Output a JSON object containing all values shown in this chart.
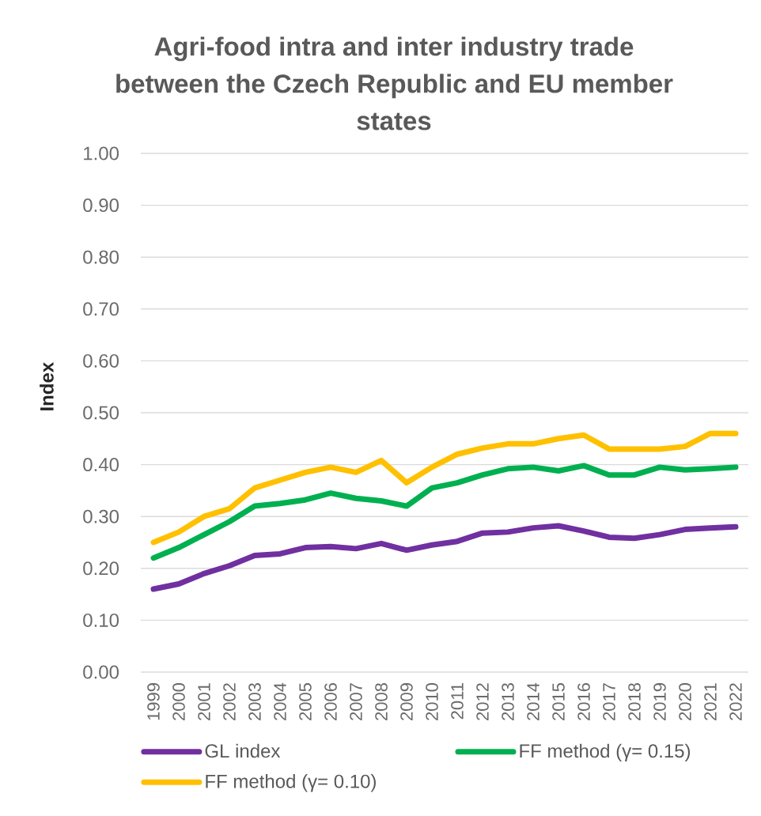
{
  "chart_data": {
    "type": "line",
    "title": "Agri-food intra and inter industry trade between the Czech Republic and EU member states",
    "ylabel": "Index",
    "categories": [
      "1999",
      "2000",
      "2001",
      "2002",
      "2003",
      "2004",
      "2005",
      "2006",
      "2007",
      "2008",
      "2009",
      "2010",
      "2011",
      "2012",
      "2013",
      "2014",
      "2015",
      "2016",
      "2017",
      "2018",
      "2019",
      "2020",
      "2021",
      "2022"
    ],
    "series": [
      {
        "name": "GL index",
        "color": "#7030a0",
        "values": [
          0.16,
          0.17,
          0.19,
          0.205,
          0.225,
          0.228,
          0.24,
          0.242,
          0.238,
          0.248,
          0.235,
          0.245,
          0.252,
          0.268,
          0.27,
          0.278,
          0.282,
          0.272,
          0.26,
          0.258,
          0.265,
          0.275,
          0.278,
          0.28
        ]
      },
      {
        "name": "FF method (γ= 0.15)",
        "color": "#00b050",
        "values": [
          0.22,
          0.24,
          0.265,
          0.29,
          0.32,
          0.325,
          0.332,
          0.345,
          0.335,
          0.33,
          0.32,
          0.355,
          0.365,
          0.38,
          0.392,
          0.395,
          0.388,
          0.398,
          0.38,
          0.38,
          0.395,
          0.39,
          0.392,
          0.395
        ]
      },
      {
        "name": "FF method (γ= 0.10)",
        "color": "#ffc000",
        "values": [
          0.25,
          0.27,
          0.3,
          0.315,
          0.355,
          0.37,
          0.385,
          0.395,
          0.385,
          0.408,
          0.365,
          0.395,
          0.42,
          0.432,
          0.44,
          0.44,
          0.45,
          0.457,
          0.43,
          0.43,
          0.43,
          0.435,
          0.46,
          0.46
        ]
      }
    ],
    "ylim": [
      0,
      1
    ],
    "yticks": [
      {
        "value": 0,
        "label": "0.00"
      },
      {
        "value": 0.1,
        "label": "0.10"
      },
      {
        "value": 0.2,
        "label": "0.20"
      },
      {
        "value": 0.3,
        "label": "0.30"
      },
      {
        "value": 0.4,
        "label": "0.40"
      },
      {
        "value": 0.5,
        "label": "0.50"
      },
      {
        "value": 0.6,
        "label": "0.60"
      },
      {
        "value": 0.7,
        "label": "0.70"
      },
      {
        "value": 0.8,
        "label": "0.80"
      },
      {
        "value": 0.9,
        "label": "0.90"
      },
      {
        "value": 1,
        "label": "1.00"
      }
    ],
    "grid": "y",
    "legend": "bottom"
  }
}
